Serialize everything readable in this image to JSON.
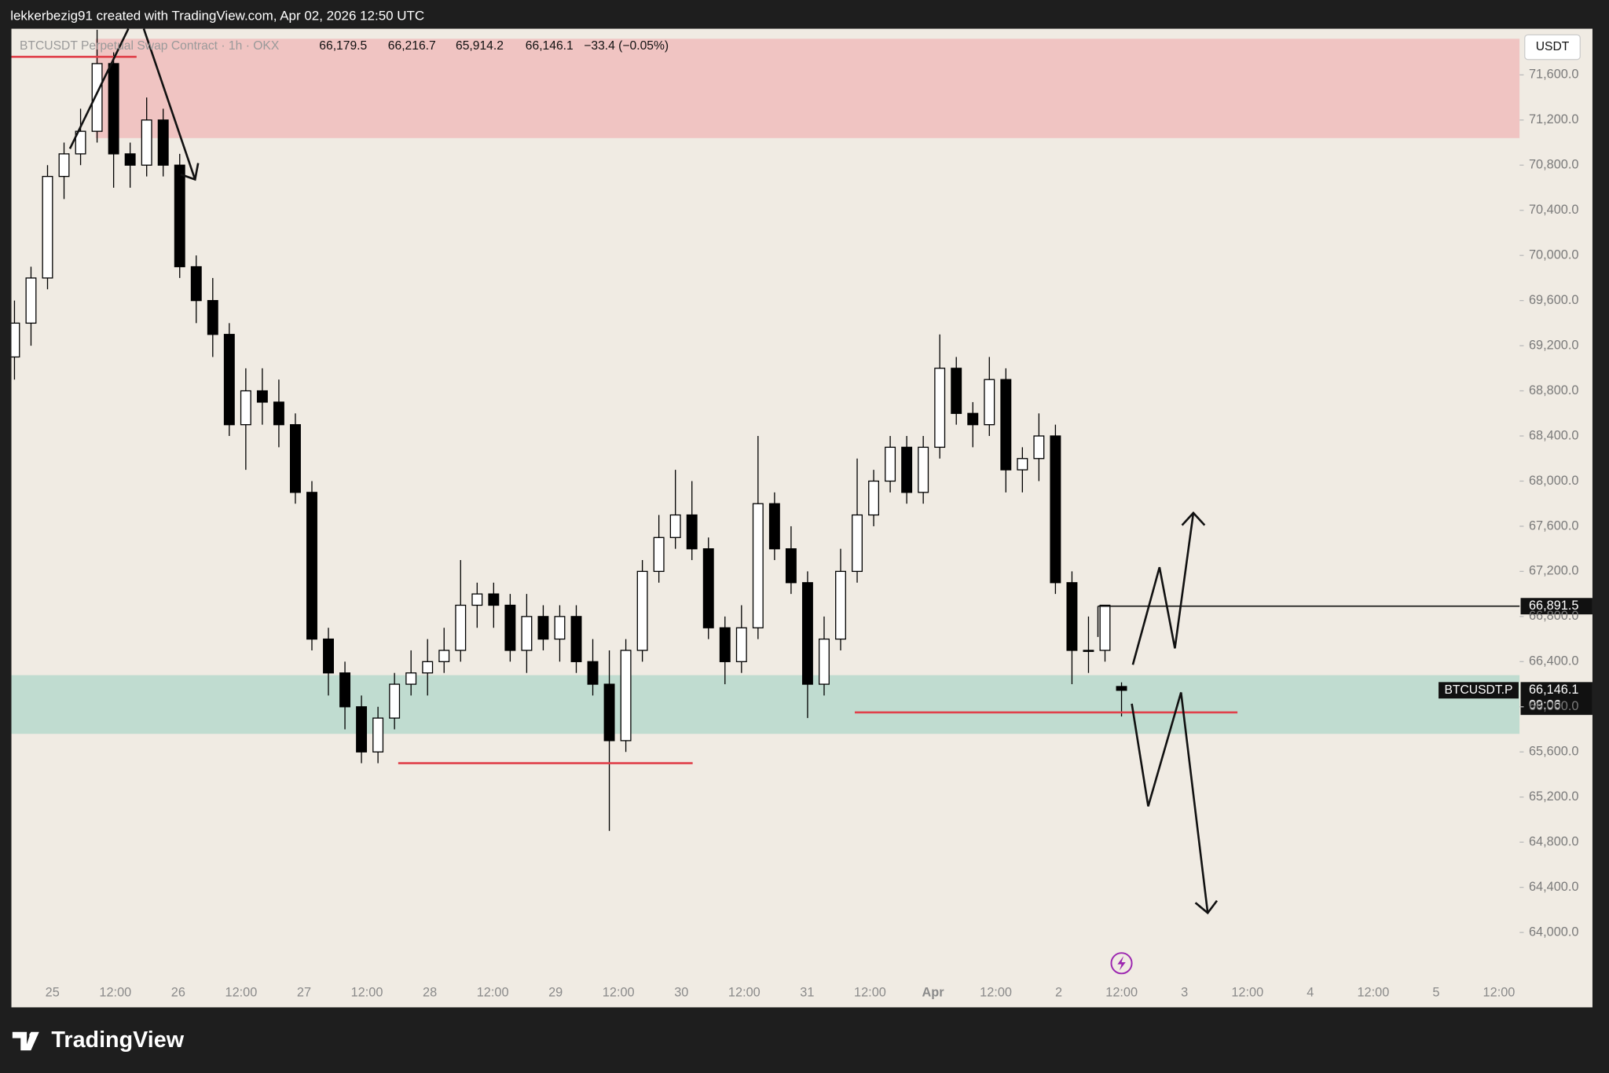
{
  "chart_data": {
    "type": "candlestick",
    "credit": "lekkerbezig91 created with TradingView.com, Apr 02, 2026 12:50 UTC",
    "symbol": "BTCUSDT Perpetual Swap Contract · 1h · OKX",
    "ohlc_labels": [
      "66,179.5",
      "66,216.7",
      "65,914.2",
      "66,146.1"
    ],
    "change_label": "−33.4 (−0.05%)",
    "currency": "USDT",
    "brand": "TradingView",
    "up_color": "#ffffff",
    "down_color": "#000000",
    "wick_color": "#000000",
    "ylim": [
      63600,
      72000
    ],
    "yticks": [
      {
        "value": 64000,
        "label": "64,000.0"
      },
      {
        "value": 64400,
        "label": "64,400.0"
      },
      {
        "value": 64800,
        "label": "64,800.0"
      },
      {
        "value": 65200,
        "label": "65,200.0"
      },
      {
        "value": 65600,
        "label": "65,600.0"
      },
      {
        "value": 66000,
        "label": "66,000.0"
      },
      {
        "value": 66400,
        "label": "66,400.0"
      },
      {
        "value": 66800,
        "label": "66,800.0"
      },
      {
        "value": 67200,
        "label": "67,200.0"
      },
      {
        "value": 67600,
        "label": "67,600.0"
      },
      {
        "value": 68000,
        "label": "68,000.0"
      },
      {
        "value": 68400,
        "label": "68,400.0"
      },
      {
        "value": 68800,
        "label": "68,800.0"
      },
      {
        "value": 69200,
        "label": "69,200.0"
      },
      {
        "value": 69600,
        "label": "69,600.0"
      },
      {
        "value": 70000,
        "label": "70,000.0"
      },
      {
        "value": 70400,
        "label": "70,400.0"
      },
      {
        "value": 70800,
        "label": "70,800.0"
      },
      {
        "value": 71200,
        "label": "71,200.0"
      },
      {
        "value": 71600,
        "label": "71,600.0"
      }
    ],
    "xticks": [
      "25",
      "12:00",
      "26",
      "12:00",
      "27",
      "12:00",
      "28",
      "12:00",
      "29",
      "12:00",
      "30",
      "12:00",
      "31",
      "12:00",
      "Apr",
      "12:00",
      "2",
      "12:00",
      "3",
      "12:00",
      "4",
      "12:00",
      "5",
      "12:00"
    ],
    "ohlc": [
      [
        69100,
        69600,
        68900,
        69400
      ],
      [
        69400,
        69900,
        69200,
        69800
      ],
      [
        69800,
        70800,
        69700,
        70700
      ],
      [
        70700,
        71000,
        70500,
        70900
      ],
      [
        70900,
        71300,
        70800,
        71100
      ],
      [
        71100,
        72000,
        71000,
        71700
      ],
      [
        71700,
        71800,
        70600,
        70900
      ],
      [
        70900,
        71000,
        70600,
        70800
      ],
      [
        70800,
        71400,
        70700,
        71200
      ],
      [
        71200,
        71300,
        70700,
        70800
      ],
      [
        70800,
        70900,
        69800,
        69900
      ],
      [
        69900,
        70000,
        69400,
        69600
      ],
      [
        69600,
        69800,
        69100,
        69300
      ],
      [
        69300,
        69400,
        68400,
        68500
      ],
      [
        68500,
        69000,
        68100,
        68800
      ],
      [
        68800,
        69000,
        68500,
        68700
      ],
      [
        68700,
        68900,
        68300,
        68500
      ],
      [
        68500,
        68600,
        67800,
        67900
      ],
      [
        67900,
        68000,
        66500,
        66600
      ],
      [
        66600,
        66700,
        66100,
        66300
      ],
      [
        66300,
        66400,
        65800,
        66000
      ],
      [
        66000,
        66100,
        65500,
        65600
      ],
      [
        65600,
        66000,
        65500,
        65900
      ],
      [
        65900,
        66300,
        65800,
        66200
      ],
      [
        66200,
        66500,
        66100,
        66300
      ],
      [
        66300,
        66600,
        66100,
        66400
      ],
      [
        66400,
        66700,
        66300,
        66500
      ],
      [
        66500,
        67300,
        66400,
        66900
      ],
      [
        66900,
        67100,
        66700,
        67000
      ],
      [
        67000,
        67100,
        66700,
        66900
      ],
      [
        66900,
        67000,
        66400,
        66500
      ],
      [
        66500,
        67000,
        66300,
        66800
      ],
      [
        66800,
        66900,
        66500,
        66600
      ],
      [
        66600,
        66900,
        66400,
        66800
      ],
      [
        66800,
        66900,
        66300,
        66400
      ],
      [
        66400,
        66600,
        66100,
        66200
      ],
      [
        66200,
        66500,
        64900,
        65700
      ],
      [
        65700,
        66600,
        65600,
        66500
      ],
      [
        66500,
        67300,
        66400,
        67200
      ],
      [
        67200,
        67700,
        67100,
        67500
      ],
      [
        67500,
        68100,
        67400,
        67700
      ],
      [
        67700,
        68000,
        67300,
        67400
      ],
      [
        67400,
        67500,
        66600,
        66700
      ],
      [
        66700,
        66800,
        66200,
        66400
      ],
      [
        66400,
        66900,
        66300,
        66700
      ],
      [
        66700,
        68400,
        66600,
        67800
      ],
      [
        67800,
        67900,
        67300,
        67400
      ],
      [
        67400,
        67600,
        67000,
        67100
      ],
      [
        67100,
        67200,
        65900,
        66200
      ],
      [
        66200,
        66800,
        66100,
        66600
      ],
      [
        66600,
        67400,
        66500,
        67200
      ],
      [
        67200,
        68200,
        67100,
        67700
      ],
      [
        67700,
        68100,
        67600,
        68000
      ],
      [
        68000,
        68400,
        67900,
        68300
      ],
      [
        68300,
        68400,
        67800,
        67900
      ],
      [
        67900,
        68400,
        67800,
        68300
      ],
      [
        68300,
        69300,
        68200,
        69000
      ],
      [
        69000,
        69100,
        68500,
        68600
      ],
      [
        68600,
        68700,
        68300,
        68500
      ],
      [
        68500,
        69100,
        68400,
        68900
      ],
      [
        68900,
        69000,
        67900,
        68100
      ],
      [
        68100,
        68300,
        67900,
        68200
      ],
      [
        68200,
        68600,
        68000,
        68400
      ],
      [
        68400,
        68500,
        67000,
        67100
      ],
      [
        67100,
        67200,
        66200,
        66500
      ],
      [
        66500,
        66800,
        66300,
        66500
      ],
      [
        66500,
        66900,
        66400,
        66900
      ],
      [
        66179.5,
        66216.7,
        65914.2,
        66146.1
      ]
    ],
    "zones": [
      {
        "top": 71920,
        "bottom": 71040,
        "color": "#f0c4c2"
      },
      {
        "top": 66280,
        "bottom": 65760,
        "color": "#c0dcd0"
      }
    ],
    "levels": [
      {
        "value": 71760,
        "color": "#e0404a"
      },
      {
        "value": 65500,
        "color": "#e0404a"
      },
      {
        "value": 65950,
        "color": "#e0404a"
      }
    ],
    "price_line": {
      "value": 66891.5,
      "label": "66,891.5"
    },
    "last_price": {
      "value": 66146.1,
      "label": "66,146.1"
    },
    "countdown": "09:06",
    "symbol_tag": "BTCUSDT.P"
  }
}
